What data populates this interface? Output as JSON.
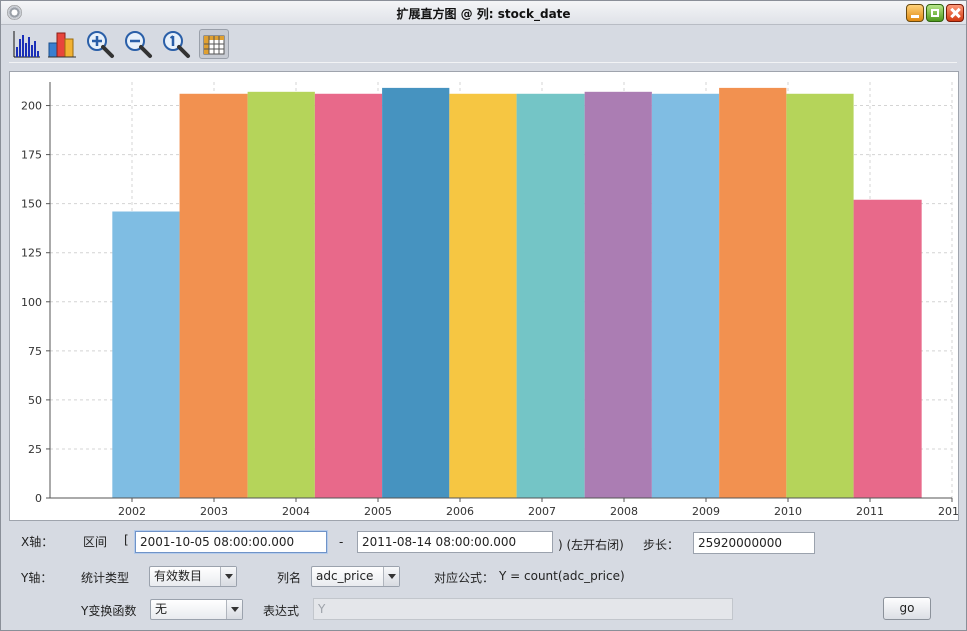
{
  "window": {
    "title": "扩展直方图 @ 列: stock_date"
  },
  "toolbar": {
    "icons": [
      "histogram-icon",
      "bar-chart-icon",
      "zoom-in-icon",
      "zoom-out-icon",
      "zoom-reset-icon",
      "table-icon"
    ]
  },
  "chart_data": {
    "type": "bar",
    "title": "",
    "xlabel": "",
    "ylabel": "",
    "x_ticks": [
      "2002",
      "2003",
      "2004",
      "2005",
      "2006",
      "2007",
      "2008",
      "2009",
      "2010",
      "2011",
      "2012"
    ],
    "y_ticks": [
      "0",
      "25",
      "50",
      "75",
      "100",
      "125",
      "150",
      "175",
      "200"
    ],
    "ylim": [
      0,
      212
    ],
    "grid": true,
    "bars": [
      {
        "x_start": 2001.76,
        "x_end": 2002.58,
        "value": 146,
        "color": "#7fbde3"
      },
      {
        "x_start": 2002.58,
        "x_end": 2003.41,
        "value": 206,
        "color": "#f29150"
      },
      {
        "x_start": 2003.41,
        "x_end": 2004.23,
        "value": 207,
        "color": "#b5d45a"
      },
      {
        "x_start": 2004.23,
        "x_end": 2005.05,
        "value": 206,
        "color": "#e8698a"
      },
      {
        "x_start": 2005.05,
        "x_end": 2005.87,
        "value": 209,
        "color": "#4693c0"
      },
      {
        "x_start": 2005.87,
        "x_end": 2006.69,
        "value": 206,
        "color": "#f6c642"
      },
      {
        "x_start": 2006.69,
        "x_end": 2007.52,
        "value": 206,
        "color": "#74c5c6"
      },
      {
        "x_start": 2007.52,
        "x_end": 2008.34,
        "value": 207,
        "color": "#ab7db3"
      },
      {
        "x_start": 2008.34,
        "x_end": 2009.16,
        "value": 206,
        "color": "#80bde3"
      },
      {
        "x_start": 2009.16,
        "x_end": 2009.98,
        "value": 209,
        "color": "#f29150"
      },
      {
        "x_start": 2009.98,
        "x_end": 2010.8,
        "value": 206,
        "color": "#b5d45a"
      },
      {
        "x_start": 2010.8,
        "x_end": 2011.63,
        "value": 152,
        "color": "#e8698a"
      }
    ],
    "x_range": [
      2001.0,
      2012.0
    ]
  },
  "form": {
    "x_axis_label": "X轴：",
    "interval_label": "区间",
    "open_bracket": "[",
    "range_start": "2001-10-05 08:00:00.000",
    "dash": "-",
    "range_end": "2011-08-14 08:00:00.000",
    "close_note": ") (左开右闭)",
    "step_label": "步长：",
    "step_value": "25920000000",
    "y_axis_label": "Y轴：",
    "stat_type_label": "统计类型",
    "stat_type_value": "有效数目",
    "column_label": "列名",
    "column_value": "adc_price",
    "formula_label": "对应公式：",
    "formula_value": "Y = count(adc_price)",
    "y_transform_label": "Y变换函数",
    "y_transform_value": "无",
    "expression_label": "表达式",
    "expression_placeholder": "Y",
    "go_label": "go"
  }
}
